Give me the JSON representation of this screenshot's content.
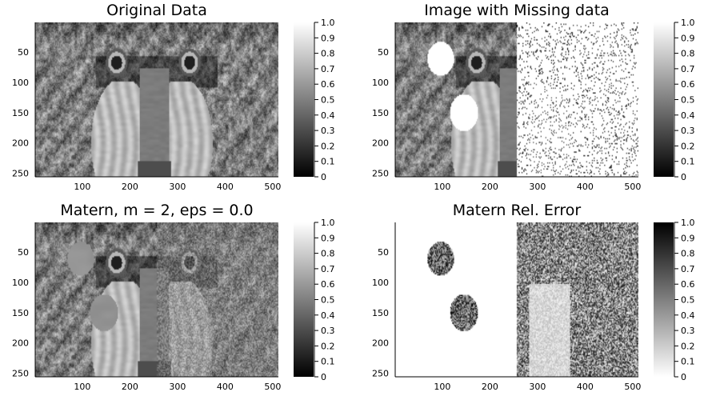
{
  "chart_data": [
    {
      "type": "heatmap",
      "title": "Original Data",
      "content": "baboon-original",
      "xticks": [
        100,
        200,
        300,
        400,
        500
      ],
      "yticks": [
        50,
        100,
        150,
        200,
        250
      ],
      "xlim": [
        1,
        512
      ],
      "ylim": [
        1,
        256
      ],
      "colormap": "grays",
      "colorbar": {
        "min": 0,
        "max": 1,
        "reversed": false,
        "ticks": [
          "0",
          "0.1",
          "0.2",
          "0.3",
          "0.4",
          "0.5",
          "0.6",
          "0.7",
          "0.8",
          "0.9",
          "1.0"
        ]
      }
    },
    {
      "type": "heatmap",
      "title": "Image with Missing data",
      "content": "baboon-missing",
      "xticks": [
        100,
        200,
        300,
        400,
        500
      ],
      "yticks": [
        50,
        100,
        150,
        200,
        250
      ],
      "xlim": [
        1,
        512
      ],
      "ylim": [
        1,
        256
      ],
      "colormap": "grays",
      "colorbar": {
        "min": 0,
        "max": 1,
        "reversed": false,
        "ticks": [
          "0",
          "0.1",
          "0.2",
          "0.3",
          "0.4",
          "0.5",
          "0.6",
          "0.7",
          "0.8",
          "0.9",
          "1.0"
        ]
      }
    },
    {
      "type": "heatmap",
      "title": "Matern, m = 2, eps = 0.0",
      "content": "baboon-reconstructed",
      "xticks": [
        100,
        200,
        300,
        400,
        500
      ],
      "yticks": [
        50,
        100,
        150,
        200,
        250
      ],
      "xlim": [
        1,
        512
      ],
      "ylim": [
        1,
        256
      ],
      "colormap": "grays",
      "colorbar": {
        "min": 0,
        "max": 1,
        "reversed": false,
        "ticks": [
          "0",
          "0.1",
          "0.2",
          "0.3",
          "0.4",
          "0.5",
          "0.6",
          "0.7",
          "0.8",
          "0.9",
          "1.0"
        ]
      }
    },
    {
      "type": "heatmap",
      "title": "Matern Rel. Error",
      "content": "relative-error",
      "xticks": [
        100,
        200,
        300,
        400,
        500
      ],
      "yticks": [
        50,
        100,
        150,
        200,
        250
      ],
      "xlim": [
        1,
        512
      ],
      "ylim": [
        1,
        256
      ],
      "colormap": "grays-reversed",
      "colorbar": {
        "min": 0,
        "max": 1,
        "reversed": true,
        "ticks": [
          "0",
          "0.1",
          "0.2",
          "0.3",
          "0.4",
          "0.5",
          "0.6",
          "0.7",
          "0.8",
          "0.9",
          "1.0"
        ]
      }
    }
  ]
}
